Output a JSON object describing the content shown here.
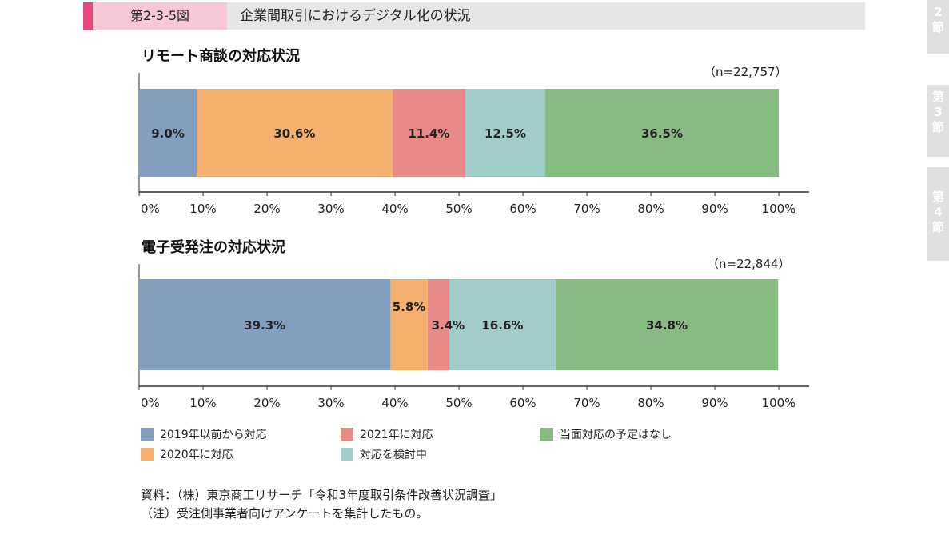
{
  "header": {
    "figure_number": "第2-3-5図",
    "figure_title": "企業間取引におけるデジタル化の状況"
  },
  "side_tabs": [
    "2\n節",
    "第\n3\n節",
    "第\n4\n節"
  ],
  "colors": {
    "s2019": "#829fbd",
    "s2020": "#f5b06f",
    "s2021": "#e88a88",
    "consider": "#a2ccc9",
    "none": "#88bb82"
  },
  "legend": [
    {
      "label": "2019年以前から対応",
      "color": "#829fbd"
    },
    {
      "label": "2020年に対応",
      "color": "#f5b06f"
    },
    {
      "label": "2021年に対応",
      "color": "#e88a88"
    },
    {
      "label": "対応を検討中",
      "color": "#a2ccc9"
    },
    {
      "label": "当面対応の予定はなし",
      "color": "#88bb82"
    }
  ],
  "chart_data": [
    {
      "type": "bar",
      "orientation": "horizontal-stacked",
      "title": "リモート商談の対応状況",
      "n": "（n=22,757）",
      "xlim": [
        0,
        100
      ],
      "xticks": [
        "0%",
        "10%",
        "20%",
        "30%",
        "40%",
        "50%",
        "60%",
        "70%",
        "80%",
        "90%",
        "100%"
      ],
      "series": [
        {
          "name": "2019年以前から対応",
          "value": 9.0,
          "label": "9.0%"
        },
        {
          "name": "2020年に対応",
          "value": 30.6,
          "label": "30.6%"
        },
        {
          "name": "2021年に対応",
          "value": 11.4,
          "label": "11.4%"
        },
        {
          "name": "対応を検討中",
          "value": 12.5,
          "label": "12.5%"
        },
        {
          "name": "当面対応の予定はなし",
          "value": 36.5,
          "label": "36.5%"
        }
      ]
    },
    {
      "type": "bar",
      "orientation": "horizontal-stacked",
      "title": "電子受発注の対応状況",
      "n": "（n=22,844）",
      "xlim": [
        0,
        100
      ],
      "xticks": [
        "0%",
        "10%",
        "20%",
        "30%",
        "40%",
        "50%",
        "60%",
        "70%",
        "80%",
        "90%",
        "100%"
      ],
      "series": [
        {
          "name": "2019年以前から対応",
          "value": 39.3,
          "label": "39.3%"
        },
        {
          "name": "2020年に対応",
          "value": 5.8,
          "label": "5.8%"
        },
        {
          "name": "2021年に対応",
          "value": 3.4,
          "label": "3.4%"
        },
        {
          "name": "対応を検討中",
          "value": 16.6,
          "label": "16.6%"
        },
        {
          "name": "当面対応の予定はなし",
          "value": 34.8,
          "label": "34.8%"
        }
      ]
    }
  ],
  "source": {
    "line1": "資料：（株）東京商工リサーチ「令和3年度取引条件改善状況調査」",
    "line2": "（注）受注側事業者向けアンケートを集計したもの。"
  }
}
